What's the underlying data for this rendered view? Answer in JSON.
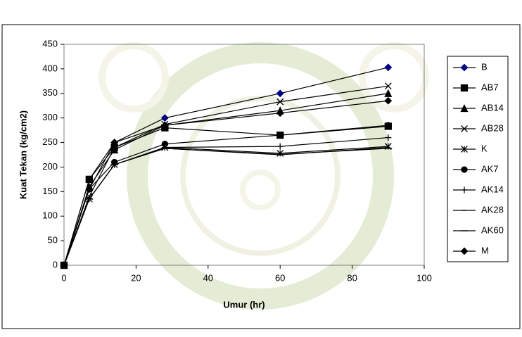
{
  "chart_data": {
    "type": "line",
    "x_label": "Umur (hr)",
    "y_label": "Kuat Tekan (kg/cm2)",
    "x": [
      0,
      7,
      14,
      28,
      60,
      90
    ],
    "xlim": [
      0,
      100
    ],
    "xticks": [
      0,
      20,
      40,
      60,
      80,
      100
    ],
    "ylim": [
      0,
      450
    ],
    "yticks": [
      0,
      50,
      100,
      150,
      200,
      250,
      300,
      350,
      400,
      450
    ],
    "legend": "right",
    "series": [
      {
        "name": "B",
        "color": "#000080",
        "marker": "diamond",
        "values": [
          0,
          175,
          250,
          300,
          350,
          403
        ]
      },
      {
        "name": "AB7",
        "color": "#000000",
        "marker": "square",
        "values": [
          0,
          175,
          240,
          280,
          265,
          283
        ]
      },
      {
        "name": "AB14",
        "color": "#000000",
        "marker": "triangle",
        "values": [
          0,
          160,
          235,
          285,
          315,
          350
        ]
      },
      {
        "name": "AB28",
        "color": "#000000",
        "marker": "x",
        "values": [
          0,
          140,
          240,
          287,
          333,
          365
        ]
      },
      {
        "name": "K",
        "color": "#000000",
        "marker": "asterisk",
        "values": [
          0,
          135,
          205,
          240,
          228,
          242
        ]
      },
      {
        "name": "AK7",
        "color": "#000000",
        "marker": "circle",
        "values": [
          0,
          155,
          210,
          247,
          265,
          285
        ]
      },
      {
        "name": "AK14",
        "color": "#000000",
        "marker": "plus",
        "values": [
          0,
          135,
          205,
          240,
          242,
          260
        ]
      },
      {
        "name": "AK28",
        "color": "#000000",
        "marker": "dash",
        "values": [
          0,
          135,
          205,
          238,
          225,
          240
        ]
      },
      {
        "name": "AK60",
        "color": "#000000",
        "marker": "longdash",
        "values": [
          0,
          135,
          205,
          238,
          226,
          238
        ]
      },
      {
        "name": "M",
        "color": "#000000",
        "marker": "diamond",
        "values": [
          0,
          155,
          250,
          285,
          310,
          335
        ]
      }
    ]
  }
}
